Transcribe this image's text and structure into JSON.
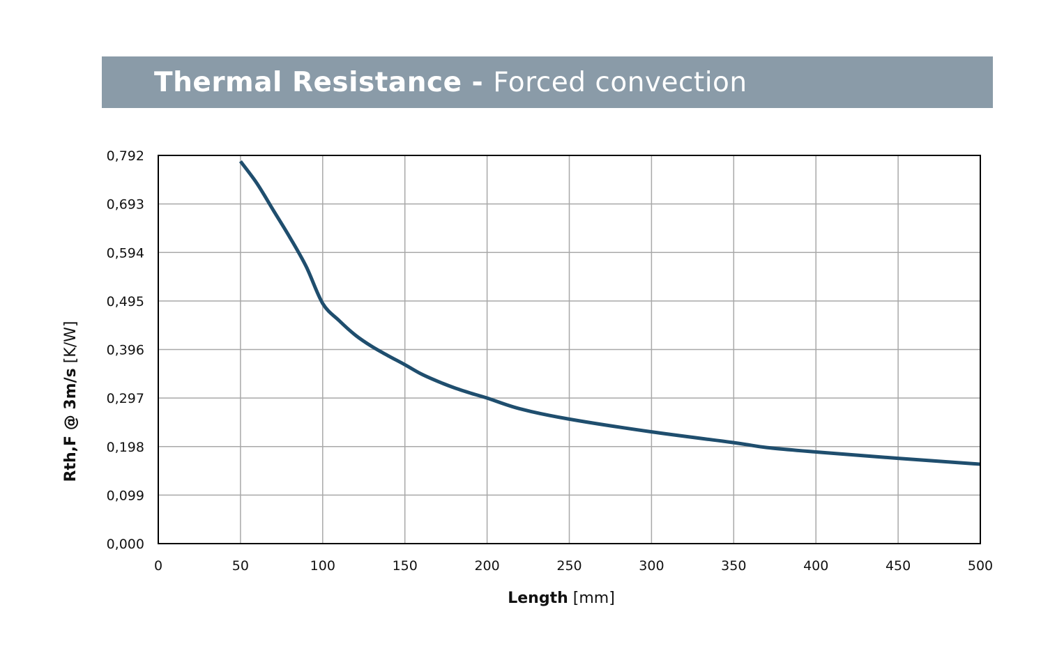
{
  "header": {
    "title_main": "Thermal Resistance",
    "title_separator": "-",
    "title_sub": "Forced convection",
    "background_color": "#8a9ba8"
  },
  "chart_data": {
    "type": "line",
    "xlabel_bold": "Length",
    "xlabel_unit": "[mm]",
    "ylabel_bold": "Rth,F @ 3m/s",
    "ylabel_unit": "[K/W]",
    "xlim": [
      0,
      500
    ],
    "ylim": [
      0,
      0.792
    ],
    "x_ticks": [
      0,
      50,
      100,
      150,
      200,
      250,
      300,
      350,
      400,
      450,
      500
    ],
    "x_tick_labels": [
      "0",
      "50",
      "100",
      "150",
      "200",
      "250",
      "300",
      "350",
      "400",
      "450",
      "500"
    ],
    "y_ticks": [
      0,
      0.099,
      0.198,
      0.297,
      0.396,
      0.495,
      0.594,
      0.693,
      0.792
    ],
    "y_tick_labels": [
      "0,000",
      "0,099",
      "0,198",
      "0,297",
      "0,396",
      "0,495",
      "0,594",
      "0,693",
      "0,792"
    ],
    "grid": true,
    "line_color": "#1f4e6e",
    "series": [
      {
        "x": [
          50,
          60,
          70,
          80,
          90,
          100,
          110,
          120,
          130,
          140,
          150,
          160,
          170,
          180,
          190,
          200,
          220,
          250,
          300,
          350,
          370,
          400,
          450,
          500
        ],
        "values": [
          0.78,
          0.735,
          0.68,
          0.625,
          0.565,
          0.49,
          0.455,
          0.425,
          0.402,
          0.383,
          0.365,
          0.346,
          0.331,
          0.318,
          0.307,
          0.297,
          0.275,
          0.254,
          0.228,
          0.206,
          0.196,
          0.187,
          0.174,
          0.162
        ]
      }
    ]
  }
}
